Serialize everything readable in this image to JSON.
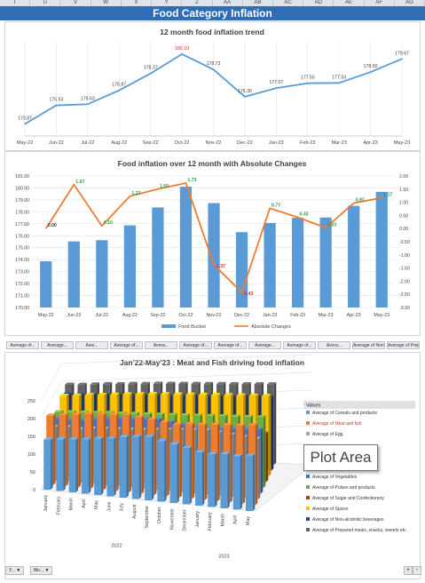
{
  "sheet_columns": [
    "T",
    "U",
    "V",
    "W",
    "X",
    "Y",
    "Z",
    "AA",
    "AB",
    "AC",
    "AD",
    "AE",
    "AF",
    "AG"
  ],
  "banner_title": "Food Category Inflation",
  "chart_data": [
    {
      "type": "line",
      "title": "12 month food inflation trend",
      "categories": [
        "May-22",
        "Jun-22",
        "Jul-22",
        "Aug-22",
        "Sep-22",
        "Oct-22",
        "Nov-22",
        "Dec-22",
        "Jan-23",
        "Feb-23",
        "Mar-23",
        "Apr-23",
        "May-23"
      ],
      "series": [
        {
          "values": [
            173.87,
            175.53,
            175.63,
            176.87,
            178.37,
            180.1,
            178.73,
            176.3,
            177.07,
            177.5,
            177.53,
            178.5,
            179.67
          ]
        }
      ],
      "data_labels": [
        "173.87",
        "175.53",
        "175.63",
        "176.87",
        "178.37",
        "180.10",
        "178.73",
        "176.30",
        "177.07",
        "177.50",
        "177.53",
        "178.50",
        "179.67"
      ],
      "max_label_color": "#e0292f",
      "line_color": "#5b9bd5",
      "ylim": [
        172.8,
        181.2
      ]
    },
    {
      "type": "bar",
      "title": "Food inflation over 12 month with Absolute Changes",
      "categories": [
        "May-22",
        "Jun-22",
        "Jul-22",
        "Aug-22",
        "Sep-22",
        "Oct-22",
        "Nov-22",
        "Dec-22",
        "Jan-23",
        "Feb-23",
        "Mar-23",
        "Apr-23",
        "May-23"
      ],
      "series": [
        {
          "name": "Food Bucket",
          "values": [
            173.87,
            175.53,
            175.63,
            176.87,
            178.37,
            180.1,
            178.73,
            176.3,
            177.07,
            177.5,
            177.53,
            178.5,
            179.67
          ],
          "color": "#5b9bd5"
        },
        {
          "name": "Absolute Changes",
          "values": [
            0.0,
            1.67,
            0.1,
            1.23,
            1.5,
            1.73,
            -1.37,
            -2.43,
            0.77,
            0.43,
            0.03,
            0.97,
            1.17
          ],
          "color": "#ed7d31",
          "axis": "right"
        }
      ],
      "change_labels": [
        "0.00",
        "1.67",
        "0.10",
        "1.23",
        "1.50",
        "1.73",
        "-1.37",
        "-2.43",
        "0.77",
        "0.43",
        "0.03",
        "0.97",
        "1.17"
      ],
      "positive_label_color": "#2e9e44",
      "negative_label_color": "#e0292f",
      "ylim": [
        170.0,
        181.0
      ],
      "y_ticks": [
        "170.00",
        "171.00",
        "172.00",
        "173.00",
        "174.00",
        "175.00",
        "176.00",
        "177.00",
        "178.00",
        "179.00",
        "180.00",
        "181.00"
      ],
      "y2lim": [
        -3.0,
        2.0
      ],
      "y2_ticks": [
        "2.00",
        "1.50",
        "1.00",
        "0.50",
        "0.00",
        "-0.50",
        "-1.00",
        "-1.50",
        "-2.00",
        "-2.50",
        "-3.00"
      ],
      "legend_position": "bottom"
    },
    {
      "type": "bar",
      "subtype": "3d-clustered-column",
      "title": "Jan'22-May'23 : Meat and Fish driving food inflation",
      "ylim": [
        0,
        250
      ],
      "y_ticks": [
        "0",
        "50",
        "100",
        "150",
        "200",
        "250"
      ],
      "month_labels": [
        "January",
        "February",
        "March",
        "April",
        "May",
        "June",
        "July",
        "August",
        "September",
        "October",
        "November",
        "December",
        "January",
        "February",
        "March",
        "April",
        "May"
      ],
      "year_groups": [
        {
          "label": "2022",
          "months": 12
        },
        {
          "label": "2023",
          "months": 5
        }
      ],
      "legend_title": "Values",
      "legend_position": "right",
      "series": [
        {
          "name": "Average of Cereals and products",
          "color": "#5b9bd5"
        },
        {
          "name": "Average of Meat and fish",
          "color": "#ed7d31",
          "highlight_color": "#e0292f"
        },
        {
          "name": "Average of Egg",
          "color": "#a5a5a5"
        },
        {
          "name": "Average of Vegetables",
          "color": "#4472c4"
        },
        {
          "name": "Average of Pulses and products",
          "color": "#70ad47"
        },
        {
          "name": "Average of Sugar and Confectionery",
          "color": "#9e480e"
        },
        {
          "name": "Average of Spices",
          "color": "#ffc000"
        },
        {
          "name": "Average of Non-alcoholic beverages",
          "color": "#264478"
        },
        {
          "name": "Average of Prepared meals, snacks, sweets etc.",
          "color": "#636363"
        }
      ],
      "bar_values": [
        [
          140,
          145,
          148,
          152,
          158,
          162,
          170,
          175,
          178,
          170,
          165,
          158,
          150,
          148,
          152,
          150,
          155
        ],
        [
          195,
          200,
          205,
          210,
          212,
          215,
          218,
          215,
          212,
          208,
          205,
          210,
          212,
          215,
          218,
          220,
          225
        ],
        [
          150,
          152,
          150,
          155,
          158,
          160,
          162,
          165,
          168,
          172,
          175,
          178,
          180,
          178,
          175,
          172,
          170
        ],
        [
          160,
          158,
          162,
          168,
          172,
          175,
          178,
          180,
          182,
          178,
          175,
          170,
          168,
          172,
          175,
          178,
          180
        ],
        [
          165,
          168,
          170,
          172,
          175,
          176,
          178,
          180,
          182,
          184,
          186,
          188,
          190,
          192,
          194,
          196,
          198
        ],
        [
          120,
          118,
          115,
          112,
          110,
          112,
          115,
          118,
          120,
          122,
          124,
          126,
          128,
          130,
          132,
          134,
          136
        ],
        [
          185,
          188,
          192,
          195,
          198,
          202,
          205,
          208,
          210,
          212,
          214,
          216,
          218,
          220,
          222,
          224,
          226
        ],
        [
          175,
          176,
          178,
          180,
          182,
          184,
          186,
          188,
          190,
          192,
          194,
          196,
          198,
          200,
          202,
          204,
          206
        ],
        [
          190,
          192,
          195,
          198,
          200,
          203,
          205,
          208,
          210,
          212,
          214,
          216,
          218,
          220,
          222,
          224,
          226
        ]
      ]
    }
  ],
  "slicers": [
    "Average of...",
    "Average...",
    "Aver...",
    "Average of...",
    "Avera...",
    "Average of...",
    "Average of...",
    "Average...",
    "Average of...",
    "Avera...",
    "Average of Non-...",
    "Average of Prepared..."
  ],
  "tooltip": "Plot Area",
  "field_buttons": [
    "Y...",
    "Mo..."
  ],
  "zoom": [
    "+",
    "-"
  ],
  "icons": {
    "filter": "filter-icon",
    "dropdown": "dropdown-arrow-icon"
  }
}
